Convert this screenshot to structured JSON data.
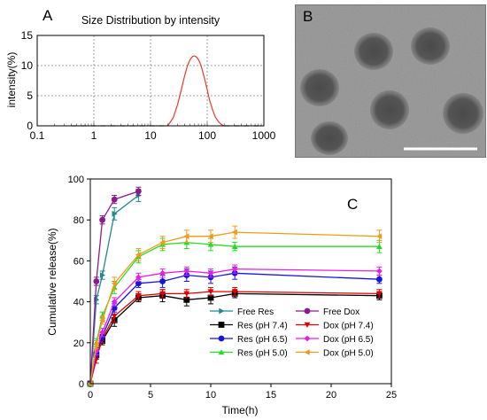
{
  "panels": {
    "a": {
      "letter": "A"
    },
    "b": {
      "letter": "B"
    },
    "c": {
      "letter": "C"
    }
  },
  "chart_data": [
    {
      "type": "line",
      "title": "Size Distribution by intensity",
      "xlabel": "",
      "ylabel": "intensity(%)",
      "xscale": "log",
      "xlim": [
        0.1,
        1000
      ],
      "ylim": [
        0,
        15
      ],
      "x_ticks": [
        "0.1",
        "1",
        "10",
        "100",
        "1000"
      ],
      "y_ticks": [
        "0",
        "5",
        "10",
        "15"
      ],
      "grid": true,
      "series": [
        {
          "color": "#e8392e",
          "x": [
            20,
            25,
            30,
            35,
            40,
            45,
            50,
            55,
            60,
            65,
            70,
            75,
            80,
            90,
            100,
            110,
            125,
            140,
            160,
            180,
            200
          ],
          "values": [
            0,
            1.3,
            3.5,
            6.0,
            8.3,
            10.0,
            11.0,
            11.5,
            11.6,
            11.4,
            11.0,
            10.4,
            9.6,
            7.8,
            6.0,
            4.3,
            2.6,
            1.4,
            0.6,
            0.2,
            0
          ]
        }
      ]
    },
    {
      "type": "line",
      "title": "",
      "xlabel": "Time(h)",
      "ylabel": "Cumulative release(%)",
      "xlim": [
        0,
        25
      ],
      "ylim": [
        0,
        100
      ],
      "x_ticks": [
        "0",
        "5",
        "10",
        "15",
        "20",
        "25"
      ],
      "y_ticks": [
        "0",
        "20",
        "40",
        "60",
        "80",
        "100"
      ],
      "legend_position": "bottom-right",
      "series": [
        {
          "name": "Free Res",
          "color": "#1f8a8a",
          "marker": "triangle-right",
          "x": [
            0,
            0.5,
            1,
            2,
            4
          ],
          "values": [
            0,
            41,
            53,
            83,
            92
          ],
          "error": [
            0,
            2,
            2,
            3,
            3
          ]
        },
        {
          "name": "Free Dox",
          "color": "#8b1a8b",
          "marker": "circle",
          "x": [
            0,
            0.5,
            1,
            2,
            4
          ],
          "values": [
            0,
            50,
            80,
            90,
            94
          ],
          "error": [
            0,
            2,
            2,
            2,
            2
          ]
        },
        {
          "name": "Res (pH 7.4)",
          "color": "#000000",
          "marker": "square",
          "x": [
            0,
            0.5,
            1,
            2,
            4,
            6,
            8,
            10,
            12,
            24
          ],
          "values": [
            0,
            14,
            21,
            31,
            42,
            43,
            41,
            42,
            44,
            43
          ],
          "error": [
            0,
            2,
            2,
            3,
            2,
            3,
            3,
            3,
            2,
            2
          ]
        },
        {
          "name": "Dox (pH 7.4)",
          "color": "#e00000",
          "marker": "triangle-down",
          "x": [
            0,
            0.5,
            1,
            2,
            4,
            6,
            8,
            10,
            12,
            24
          ],
          "values": [
            0,
            12,
            22,
            33,
            43,
            44,
            44,
            45,
            45,
            44
          ],
          "error": [
            0,
            2,
            2,
            3,
            2,
            2,
            2,
            2,
            2,
            2
          ]
        },
        {
          "name": "Res (pH 6.5)",
          "color": "#1515e0",
          "marker": "circle",
          "x": [
            0,
            0.5,
            1,
            2,
            4,
            6,
            8,
            10,
            12,
            24
          ],
          "values": [
            0,
            15,
            23,
            37,
            49,
            50,
            53,
            52,
            54,
            51
          ],
          "error": [
            0,
            2,
            2,
            2,
            2,
            3,
            3,
            3,
            3,
            2
          ]
        },
        {
          "name": "Dox (pH 6.5)",
          "color": "#e81ee8",
          "marker": "diamond",
          "x": [
            0,
            0.5,
            1,
            2,
            4,
            6,
            8,
            10,
            12,
            24
          ],
          "values": [
            0,
            16,
            25,
            40,
            52,
            54,
            55,
            54,
            56,
            55
          ],
          "error": [
            0,
            2,
            2,
            2,
            2,
            2,
            2,
            2,
            2,
            2
          ]
        },
        {
          "name": "Res (pH 5.0)",
          "color": "#22dd22",
          "marker": "triangle-up",
          "x": [
            0,
            0.5,
            1,
            2,
            4,
            6,
            8,
            10,
            12,
            24
          ],
          "values": [
            0,
            20,
            33,
            47,
            62,
            68,
            69,
            68,
            67,
            67
          ],
          "error": [
            0,
            2,
            2,
            3,
            3,
            3,
            3,
            3,
            2,
            3
          ]
        },
        {
          "name": "Dox (pH 5.0)",
          "color": "#f39a1a",
          "marker": "triangle-left",
          "x": [
            0,
            0.5,
            1,
            2,
            4,
            6,
            8,
            10,
            12,
            24
          ],
          "values": [
            0,
            19,
            31,
            49,
            63,
            69,
            72,
            72,
            74,
            72
          ],
          "error": [
            0,
            2,
            2,
            3,
            3,
            3,
            3,
            3,
            3,
            3
          ]
        }
      ]
    }
  ]
}
